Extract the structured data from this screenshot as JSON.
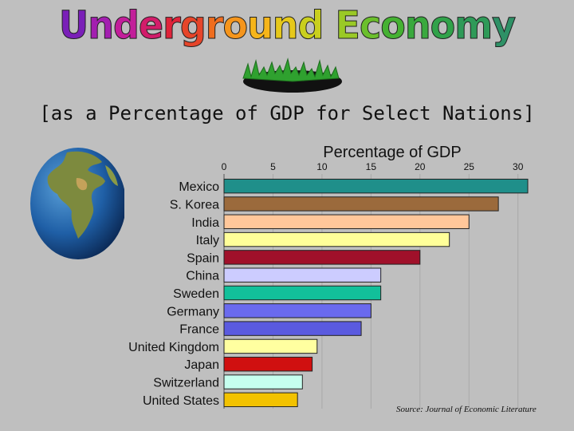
{
  "slide": {
    "title": "Underground Economy",
    "title_colors": [
      "#7a1fb8",
      "#a31fb0",
      "#c21e9a",
      "#d21c6a",
      "#e0233a",
      "#e6452a",
      "#ef6d1f",
      "#f5951c",
      "#f6b51a",
      "#e6c81b",
      "#c9cf1e",
      "#9ac926",
      "#6bbf2c",
      "#45b132",
      "#3aa93e",
      "#31a24a",
      "#2f9a58",
      "#2e9166",
      "#2d8873"
    ],
    "subtitle": "[as a Percentage of GDP for Select Nations]",
    "source": "Source: Journal of Economic Literature"
  },
  "chart_data": {
    "type": "bar",
    "orientation": "horizontal",
    "title": "Percentage of GDP",
    "x_ticks": [
      0,
      5,
      10,
      15,
      20,
      25,
      30
    ],
    "xlim": [
      0,
      31
    ],
    "grid": true,
    "categories": [
      "Mexico",
      "S. Korea",
      "India",
      "Italy",
      "Spain",
      "China",
      "Sweden",
      "Germany",
      "France",
      "United Kingdom",
      "Japan",
      "Switzerland",
      "United States"
    ],
    "values": [
      31,
      28,
      25,
      23,
      20,
      16,
      16,
      15,
      14,
      9.5,
      9,
      8,
      7.5
    ],
    "colors": [
      "#1f8f8a",
      "#9b6a3c",
      "#ffc79a",
      "#ffff99",
      "#a0102a",
      "#ccccff",
      "#12c09a",
      "#6a6aee",
      "#5a5adf",
      "#ffffa0",
      "#d01010",
      "#c6ffef",
      "#f2c200"
    ]
  }
}
